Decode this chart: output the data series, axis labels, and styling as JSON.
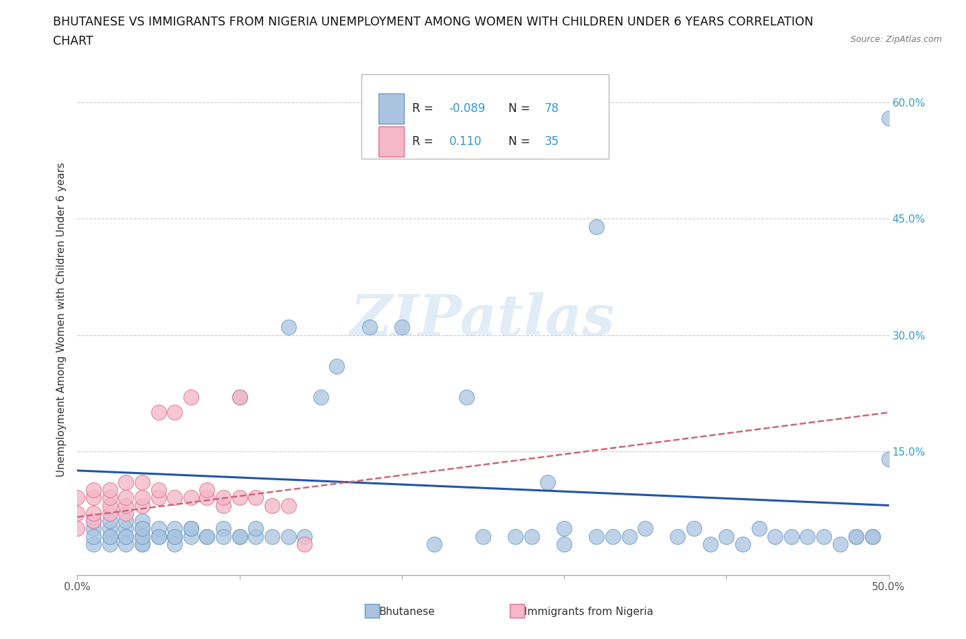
{
  "title_line1": "BHUTANESE VS IMMIGRANTS FROM NIGERIA UNEMPLOYMENT AMONG WOMEN WITH CHILDREN UNDER 6 YEARS CORRELATION",
  "title_line2": "CHART",
  "source": "Source: ZipAtlas.com",
  "ylabel": "Unemployment Among Women with Children Under 6 years",
  "xlim": [
    0.0,
    0.5
  ],
  "ylim": [
    -0.01,
    0.65
  ],
  "xticks": [
    0.0,
    0.1,
    0.2,
    0.3,
    0.4,
    0.5
  ],
  "xticklabels": [
    "0.0%",
    "",
    "",
    "",
    "",
    "50.0%"
  ],
  "yticks": [
    0.0,
    0.15,
    0.3,
    0.45,
    0.6
  ],
  "yticklabels_right": [
    "",
    "15.0%",
    "30.0%",
    "45.0%",
    "60.0%"
  ],
  "grid_color": "#cccccc",
  "bhutanese_color": "#aac4e0",
  "nigeria_color": "#f5b8c8",
  "bhutanese_edge": "#6699cc",
  "nigeria_edge": "#e07090",
  "trend_bhutanese_color": "#2255aa",
  "trend_nigeria_color": "#cc6677",
  "watermark_text": "ZIPatlas",
  "legend_label1": "Bhutanese",
  "legend_label2": "Immigrants from Nigeria",
  "bhutanese_R": "-0.089",
  "bhutanese_N": "78",
  "nigeria_R": "0.110",
  "nigeria_N": "35",
  "bhutanese_x": [
    0.01,
    0.01,
    0.01,
    0.02,
    0.02,
    0.02,
    0.02,
    0.03,
    0.03,
    0.03,
    0.04,
    0.04,
    0.04,
    0.04,
    0.04,
    0.05,
    0.05,
    0.06,
    0.06,
    0.06,
    0.07,
    0.07,
    0.08,
    0.09,
    0.1,
    0.1,
    0.11,
    0.13,
    0.15,
    0.16,
    0.18,
    0.2,
    0.22,
    0.24,
    0.25,
    0.27,
    0.28,
    0.29,
    0.3,
    0.3,
    0.32,
    0.33,
    0.34,
    0.35,
    0.37,
    0.38,
    0.39,
    0.4,
    0.41,
    0.42,
    0.43,
    0.44,
    0.45,
    0.46,
    0.47,
    0.48,
    0.48,
    0.49,
    0.49,
    0.5,
    0.01,
    0.02,
    0.03,
    0.03,
    0.04,
    0.04,
    0.05,
    0.06,
    0.07,
    0.08,
    0.09,
    0.1,
    0.11,
    0.12,
    0.13,
    0.14,
    0.5,
    0.32
  ],
  "bhutanese_y": [
    0.05,
    0.06,
    0.03,
    0.04,
    0.05,
    0.06,
    0.03,
    0.04,
    0.05,
    0.03,
    0.03,
    0.04,
    0.05,
    0.06,
    0.03,
    0.04,
    0.05,
    0.04,
    0.05,
    0.03,
    0.04,
    0.05,
    0.04,
    0.05,
    0.04,
    0.22,
    0.04,
    0.31,
    0.22,
    0.26,
    0.31,
    0.31,
    0.03,
    0.22,
    0.04,
    0.04,
    0.04,
    0.11,
    0.05,
    0.03,
    0.04,
    0.04,
    0.04,
    0.05,
    0.04,
    0.05,
    0.03,
    0.04,
    0.03,
    0.05,
    0.04,
    0.04,
    0.04,
    0.04,
    0.03,
    0.04,
    0.04,
    0.04,
    0.04,
    0.14,
    0.04,
    0.04,
    0.04,
    0.06,
    0.04,
    0.05,
    0.04,
    0.04,
    0.05,
    0.04,
    0.04,
    0.04,
    0.05,
    0.04,
    0.04,
    0.04,
    0.58,
    0.44
  ],
  "nigeria_x": [
    0.0,
    0.0,
    0.0,
    0.01,
    0.01,
    0.01,
    0.01,
    0.02,
    0.02,
    0.02,
    0.02,
    0.03,
    0.03,
    0.03,
    0.03,
    0.04,
    0.04,
    0.04,
    0.05,
    0.05,
    0.05,
    0.06,
    0.06,
    0.07,
    0.07,
    0.08,
    0.08,
    0.09,
    0.09,
    0.1,
    0.1,
    0.11,
    0.12,
    0.13,
    0.14
  ],
  "nigeria_y": [
    0.05,
    0.07,
    0.09,
    0.06,
    0.07,
    0.09,
    0.1,
    0.07,
    0.08,
    0.09,
    0.1,
    0.07,
    0.08,
    0.09,
    0.11,
    0.08,
    0.09,
    0.11,
    0.09,
    0.1,
    0.2,
    0.09,
    0.2,
    0.09,
    0.22,
    0.09,
    0.1,
    0.08,
    0.09,
    0.09,
    0.22,
    0.09,
    0.08,
    0.08,
    0.03
  ],
  "trend_bx": [
    0.0,
    0.5
  ],
  "trend_by": [
    0.125,
    0.08
  ],
  "trend_nx": [
    0.0,
    0.5
  ],
  "trend_ny": [
    0.065,
    0.2
  ]
}
